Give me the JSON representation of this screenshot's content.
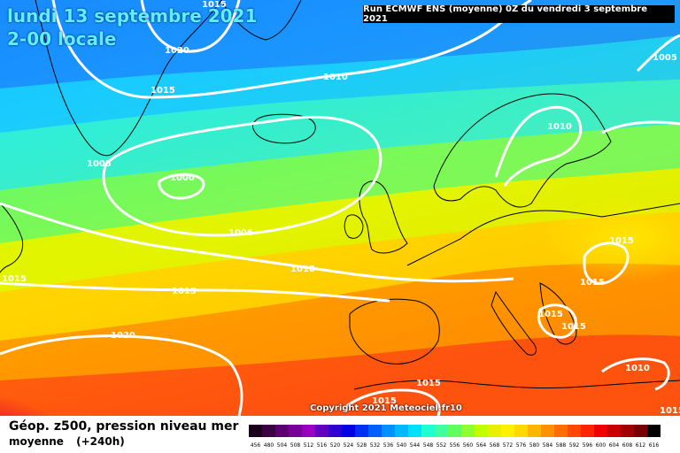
{
  "header": {
    "date": "lundi 13 septembre 2021",
    "time": "2-00 locale",
    "run": "Run ECMWF ENS (moyenne) 0Z du vendredi 3 septembre 2021"
  },
  "copyright": "Copyright 2021 Meteociel.fr10",
  "footer": {
    "title": "Géop. z500, pression niveau mer",
    "subtitle": "moyenne",
    "lead": "(+240h)"
  },
  "colors": {
    "low": "#1e90ff",
    "mid": "#f5f000",
    "high": "#e8001a",
    "contour": "#ffffff",
    "coast": "#000000"
  },
  "isobar_labels": [
    "1015",
    "1020",
    "1015",
    "1010",
    "1005",
    "1000",
    "1005",
    "1010",
    "1015",
    "1015",
    "1020",
    "1010",
    "1005",
    "1015",
    "1015",
    "1015",
    "1015",
    "1010",
    "1015",
    "1015",
    "1015"
  ],
  "scale": {
    "ticks": [
      "456",
      "480",
      "504",
      "508",
      "512",
      "516",
      "520",
      "524",
      "528",
      "532",
      "536",
      "540",
      "544",
      "548",
      "552",
      "556",
      "560",
      "564",
      "568",
      "572",
      "576",
      "580",
      "584",
      "588",
      "592",
      "596",
      "600",
      "604",
      "608",
      "612",
      "616"
    ],
    "colors": [
      "#1a001a",
      "#3a0040",
      "#5a0070",
      "#7a009a",
      "#9a00c0",
      "#6000c0",
      "#3000d0",
      "#0000e0",
      "#0030f0",
      "#0060ff",
      "#0090ff",
      "#00b8ff",
      "#00e0ff",
      "#20ffd0",
      "#40ffa0",
      "#60ff60",
      "#90ff30",
      "#c0ff00",
      "#e8f000",
      "#fff000",
      "#ffd800",
      "#ffb400",
      "#ff9000",
      "#ff6c00",
      "#ff4800",
      "#ff2400",
      "#f00000",
      "#c80000",
      "#a00000",
      "#780000",
      "#000000"
    ]
  }
}
